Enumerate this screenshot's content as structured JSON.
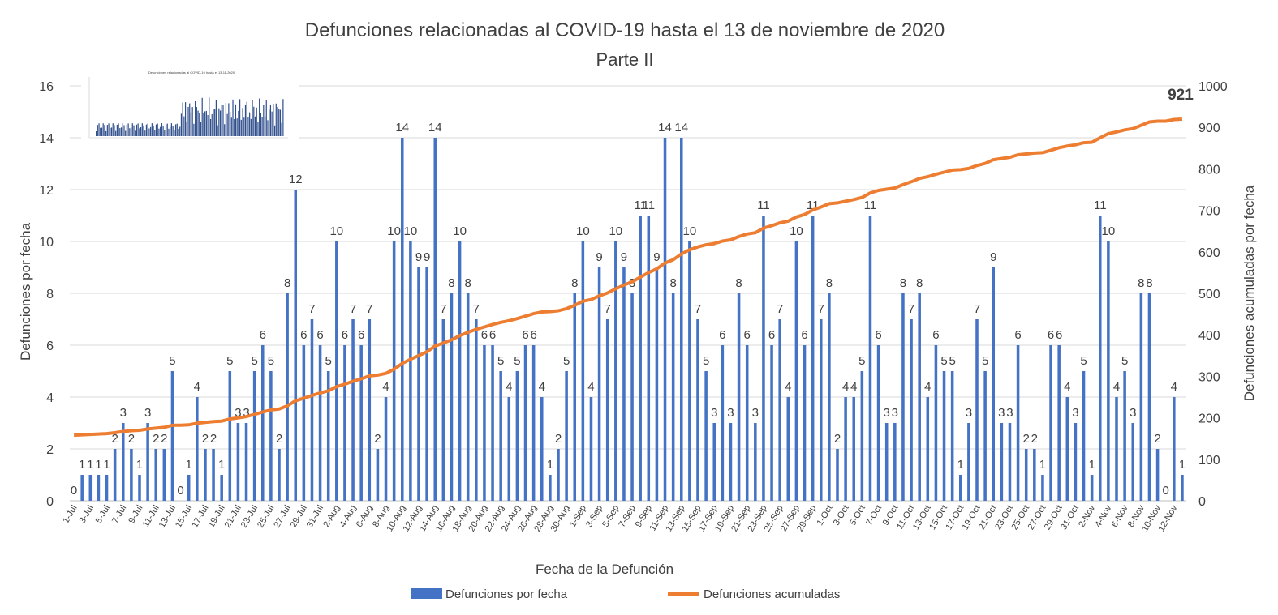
{
  "chart_data": {
    "type": "bar",
    "title": "Defunciones relacionadas al COVID-19 hasta el 13 de noviembre de 2020",
    "subtitle": "Parte II",
    "xlabel": "Fecha de la Defunción",
    "ylabel": "Defunciones por fecha",
    "y2label": "Defunciones acumuladas por fecha",
    "ylim": [
      0,
      16
    ],
    "yticks": [
      0,
      2,
      4,
      6,
      8,
      10,
      12,
      14,
      16
    ],
    "y2lim": [
      0,
      1000
    ],
    "y2ticks": [
      0,
      100,
      200,
      300,
      400,
      500,
      600,
      700,
      800,
      900,
      1000
    ],
    "grid": true,
    "legend_position": "bottom",
    "x": [
      "1-Jul",
      "2-Jul",
      "3-Jul",
      "4-Jul",
      "5-Jul",
      "6-Jul",
      "7-Jul",
      "8-Jul",
      "9-Jul",
      "10-Jul",
      "11-Jul",
      "12-Jul",
      "13-Jul",
      "14-Jul",
      "15-Jul",
      "16-Jul",
      "17-Jul",
      "18-Jul",
      "19-Jul",
      "20-Jul",
      "21-Jul",
      "22-Jul",
      "23-Jul",
      "24-Jul",
      "25-Jul",
      "26-Jul",
      "27-Jul",
      "28-Jul",
      "29-Jul",
      "30-Jul",
      "31-Jul",
      "1-Aug",
      "2-Aug",
      "3-Aug",
      "4-Aug",
      "5-Aug",
      "6-Aug",
      "7-Aug",
      "8-Aug",
      "9-Aug",
      "10-Aug",
      "11-Aug",
      "12-Aug",
      "13-Aug",
      "14-Aug",
      "15-Aug",
      "16-Aug",
      "17-Aug",
      "18-Aug",
      "19-Aug",
      "20-Aug",
      "21-Aug",
      "22-Aug",
      "23-Aug",
      "24-Aug",
      "25-Aug",
      "26-Aug",
      "27-Aug",
      "28-Aug",
      "29-Aug",
      "30-Aug",
      "31-Aug",
      "1-Sep",
      "2-Sep",
      "3-Sep",
      "4-Sep",
      "5-Sep",
      "6-Sep",
      "7-Sep",
      "8-Sep",
      "9-Sep",
      "10-Sep",
      "11-Sep",
      "12-Sep",
      "13-Sep",
      "14-Sep",
      "15-Sep",
      "16-Sep",
      "17-Sep",
      "18-Sep",
      "19-Sep",
      "20-Sep",
      "21-Sep",
      "22-Sep",
      "23-Sep",
      "24-Sep",
      "25-Sep",
      "26-Sep",
      "27-Sep",
      "28-Sep",
      "29-Sep",
      "30-Sep",
      "1-Oct",
      "2-Oct",
      "3-Oct",
      "4-Oct",
      "5-Oct",
      "6-Oct",
      "7-Oct",
      "8-Oct",
      "9-Oct",
      "10-Oct",
      "11-Oct",
      "12-Oct",
      "13-Oct",
      "14-Oct",
      "15-Oct",
      "16-Oct",
      "17-Oct",
      "18-Oct",
      "19-Oct",
      "20-Oct",
      "21-Oct",
      "22-Oct",
      "23-Oct",
      "24-Oct",
      "25-Oct",
      "26-Oct",
      "27-Oct",
      "28-Oct",
      "29-Oct",
      "30-Oct",
      "31-Oct",
      "1-Nov",
      "2-Nov",
      "3-Nov",
      "4-Nov",
      "5-Nov",
      "6-Nov",
      "7-Nov",
      "8-Nov",
      "9-Nov",
      "10-Nov",
      "11-Nov",
      "12-Nov",
      "13-Nov"
    ],
    "series": [
      {
        "name": "Defunciones por fecha",
        "type": "bar",
        "color": "#4472C4",
        "values": [
          0,
          1,
          1,
          1,
          1,
          2,
          3,
          2,
          1,
          3,
          2,
          2,
          5,
          0,
          1,
          4,
          2,
          2,
          1,
          5,
          3,
          3,
          5,
          6,
          5,
          2,
          8,
          12,
          6,
          7,
          6,
          5,
          10,
          6,
          7,
          6,
          7,
          2,
          4,
          10,
          14,
          10,
          9,
          9,
          14,
          7,
          8,
          10,
          8,
          7,
          6,
          6,
          5,
          4,
          5,
          6,
          6,
          4,
          1,
          2,
          5,
          8,
          10,
          4,
          9,
          7,
          10,
          9,
          8,
          11,
          11,
          9,
          14,
          8,
          14,
          10,
          7,
          5,
          3,
          6,
          3,
          8,
          6,
          3,
          11,
          6,
          7,
          4,
          10,
          6,
          11,
          7,
          8,
          2,
          4,
          4,
          5,
          11,
          6,
          3,
          3,
          8,
          7,
          8,
          4,
          6,
          5,
          5,
          1,
          3,
          7,
          5,
          9,
          3,
          3,
          6,
          2,
          2,
          1,
          6,
          6,
          4,
          3,
          5,
          1,
          11,
          10,
          4,
          5,
          3,
          8,
          8,
          2,
          0,
          4,
          1
        ]
      },
      {
        "name": "Defunciones acumuladas",
        "type": "line",
        "color": "#ED7D31",
        "start": 158,
        "end_label": "921"
      }
    ],
    "x_tick_labels": [
      "1-Jul",
      "3-Jul",
      "5-Jul",
      "7-Jul",
      "9-Jul",
      "11-Jul",
      "13-Jul",
      "15-Jul",
      "17-Jul",
      "19-Jul",
      "21-Jul",
      "23-Jul",
      "25-Jul",
      "27-Jul",
      "29-Jul",
      "31-Jul",
      "2-Aug",
      "4-Aug",
      "6-Aug",
      "8-Aug",
      "10-Aug",
      "12-Aug",
      "14-Aug",
      "16-Aug",
      "18-Aug",
      "20-Aug",
      "22-Aug",
      "24-Aug",
      "26-Aug",
      "28-Aug",
      "30-Aug",
      "1-Sep",
      "3-Sep",
      "5-Sep",
      "7-Sep",
      "9-Sep",
      "11-Sep",
      "13-Sep",
      "15-Sep",
      "17-Sep",
      "19-Sep",
      "21-Sep",
      "23-Sep",
      "25-Sep",
      "27-Sep",
      "29-Sep",
      "1-Oct",
      "3-Oct",
      "5-Oct",
      "7-Oct",
      "9-Oct",
      "11-Oct",
      "13-Oct",
      "15-Oct",
      "17-Oct",
      "19-Oct",
      "21-Oct",
      "23-Oct",
      "25-Oct",
      "27-Oct",
      "29-Oct",
      "31-Oct",
      "2-Nov",
      "4-Nov",
      "6-Nov",
      "8-Nov",
      "10-Nov",
      "12-Nov"
    ]
  },
  "inset": {
    "description": "thumbnail of Parte I chart",
    "title": "Defunciones relacionadas al COVID-19 hasta el 13-11-2020"
  }
}
